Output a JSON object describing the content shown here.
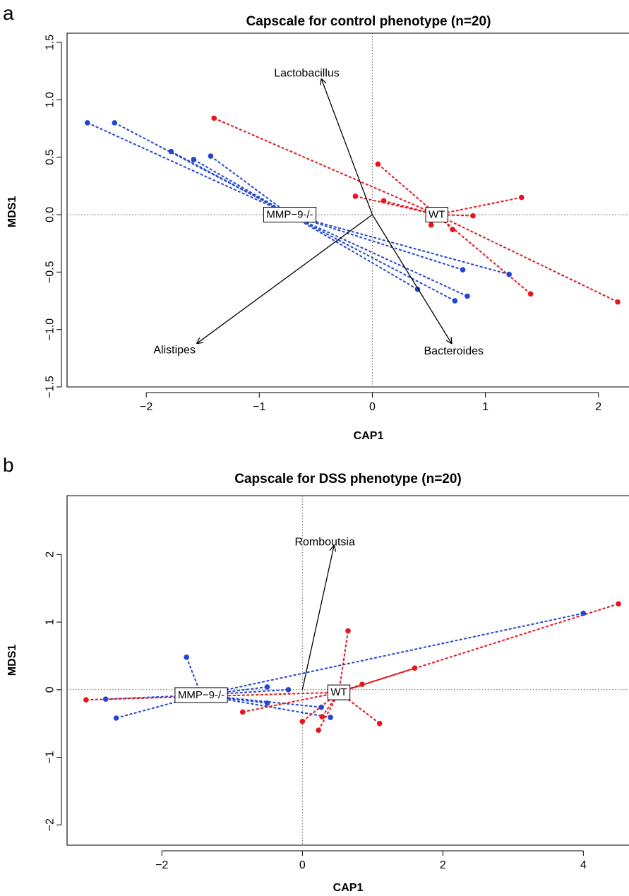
{
  "chart_data": [
    {
      "type": "scatter",
      "panel_label": "a",
      "title": "Capscale for control phenotype (n=20)",
      "xlabel": "CAP1",
      "ylabel": "MDS1",
      "xlim": [
        -2.7,
        2.27
      ],
      "ylim": [
        -1.5,
        1.58
      ],
      "xticks": [
        -2,
        -1,
        0,
        1,
        2
      ],
      "xtick_labels": [
        "−2",
        "−1",
        "0",
        "1",
        "2"
      ],
      "yticks": [
        -1.5,
        -1.0,
        -0.5,
        0.0,
        0.5,
        1.0,
        1.5
      ],
      "ytick_labels": [
        "−1.5",
        "−1.0",
        "−0.5",
        "0.0",
        "0.5",
        "1.0",
        "1.5"
      ],
      "reference_lines": {
        "x": 0,
        "y": 0
      },
      "series": [
        {
          "name": "MMP-9-/-",
          "color": "#2346d0",
          "centroid": [
            -0.73,
            0.0
          ],
          "centroid_label": "MMP−9-/-",
          "points": [
            [
              -2.52,
              0.8
            ],
            [
              -2.28,
              0.8
            ],
            [
              -1.78,
              0.55
            ],
            [
              -1.58,
              0.48
            ],
            [
              -1.43,
              0.51
            ],
            [
              0.4,
              -0.65
            ],
            [
              0.73,
              -0.75
            ],
            [
              0.84,
              -0.71
            ],
            [
              0.8,
              -0.48
            ],
            [
              1.21,
              -0.52
            ]
          ]
        },
        {
          "name": "WT",
          "color": "#e8141c",
          "centroid": [
            0.57,
            0.0
          ],
          "centroid_label": "WT",
          "points": [
            [
              -1.4,
              0.84
            ],
            [
              0.05,
              0.44
            ],
            [
              -0.15,
              0.16
            ],
            [
              0.1,
              0.12
            ],
            [
              0.52,
              -0.09
            ],
            [
              0.71,
              -0.13
            ],
            [
              0.89,
              -0.01
            ],
            [
              1.32,
              0.15
            ],
            [
              1.4,
              -0.69
            ],
            [
              2.17,
              -0.76
            ]
          ]
        }
      ],
      "arrows": [
        {
          "label": "Lactobacillus",
          "from": [
            0,
            0
          ],
          "to": [
            -0.45,
            1.18
          ],
          "label_at": [
            -0.58,
            1.23
          ]
        },
        {
          "label": "Alistipes",
          "from": [
            0,
            0
          ],
          "to": [
            -1.55,
            -1.12
          ],
          "label_at": [
            -1.75,
            -1.18
          ]
        },
        {
          "label": "Bacteroides",
          "from": [
            0,
            0
          ],
          "to": [
            0.7,
            -1.12
          ],
          "label_at": [
            0.72,
            -1.19
          ]
        }
      ]
    },
    {
      "type": "scatter",
      "panel_label": "b",
      "title": "Capscale for DSS phenotype (n=20)",
      "xlabel": "CAP1",
      "ylabel": "MDS1",
      "xlim": [
        -3.35,
        4.65
      ],
      "ylim": [
        -2.3,
        2.87
      ],
      "xticks": [
        -2,
        0,
        2,
        4
      ],
      "xtick_labels": [
        "−2",
        "0",
        "2",
        "4"
      ],
      "yticks": [
        -2,
        -1,
        0,
        1,
        2
      ],
      "ytick_labels": [
        "−2",
        "−1",
        "0",
        "1",
        "2"
      ],
      "reference_lines": {
        "x": 0,
        "y": 0
      },
      "series": [
        {
          "name": "MMP-9-/-",
          "color": "#2346d0",
          "centroid": [
            -1.44,
            -0.08
          ],
          "centroid_label": "MMP−9-/-",
          "points": [
            [
              -2.8,
              -0.14
            ],
            [
              -2.65,
              -0.42
            ],
            [
              -1.72,
              -0.15
            ],
            [
              -1.65,
              0.48
            ],
            [
              -0.5,
              0.04
            ],
            [
              -0.5,
              -0.2
            ],
            [
              -0.2,
              0.0
            ],
            [
              0.27,
              -0.26
            ],
            [
              0.4,
              -0.41
            ],
            [
              4.0,
              1.13
            ]
          ]
        },
        {
          "name": "WT",
          "color": "#e8141c",
          "centroid": [
            0.52,
            -0.04
          ],
          "centroid_label": "WT",
          "points": [
            [
              -3.08,
              -0.15
            ],
            [
              -0.85,
              -0.33
            ],
            [
              0.0,
              -0.47
            ],
            [
              0.23,
              -0.6
            ],
            [
              0.28,
              -0.4
            ],
            [
              0.65,
              0.87
            ],
            [
              0.85,
              0.08
            ],
            [
              1.1,
              -0.5
            ],
            [
              1.6,
              0.32
            ],
            [
              4.5,
              1.27
            ]
          ]
        }
      ],
      "arrows": [
        {
          "label": "Romboutsia",
          "from": [
            0,
            0
          ],
          "to": [
            0.45,
            2.13
          ],
          "label_at": [
            0.32,
            2.18
          ]
        }
      ]
    }
  ]
}
